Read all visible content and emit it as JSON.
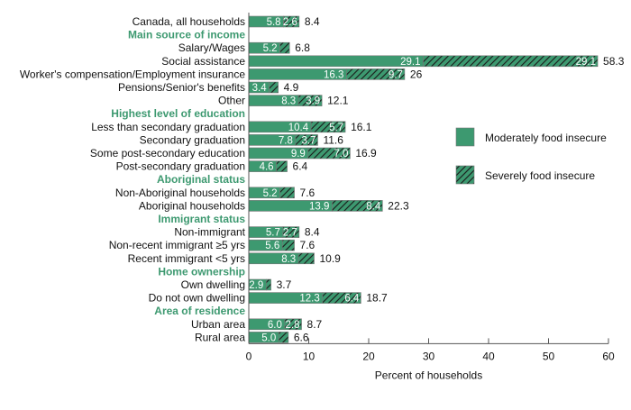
{
  "chart_data": {
    "type": "bar",
    "orientation": "horizontal",
    "stacked": true,
    "xlabel": "Percent of households",
    "xlim": [
      0,
      60
    ],
    "xticks": [
      0,
      10,
      20,
      30,
      40,
      50,
      60
    ],
    "grid": false,
    "legend_position": "right",
    "colors": {
      "moderate": "#3d9970",
      "severe_hatch": "#1a1a1a",
      "header": "#3d9970"
    },
    "series": [
      {
        "name": "Moderately food insecure",
        "pattern": "solid"
      },
      {
        "name": "Severely food insecure",
        "pattern": "hatched"
      }
    ],
    "rows": [
      {
        "label": "Canada, all households",
        "moderate": 5.8,
        "severe": 2.6,
        "total": "8.4"
      },
      {
        "header": "Main source of income"
      },
      {
        "label": "Salary/Wages",
        "moderate": 5.2,
        "severe": 1.6,
        "total": "6.8"
      },
      {
        "label": "Social assistance",
        "moderate": 29.1,
        "severe": 29.1,
        "total": "58.3"
      },
      {
        "label": "Worker's compensation/Employment insurance",
        "moderate": 16.3,
        "severe": 9.7,
        "total": "26"
      },
      {
        "label": "Pensions/Senior's benefits",
        "moderate": 3.4,
        "severe": 1.5,
        "total": "4.9"
      },
      {
        "label": "Other",
        "moderate": 8.3,
        "severe": 3.9,
        "total": "12.1"
      },
      {
        "header": "Highest level of education"
      },
      {
        "label": "Less than secondary graduation",
        "moderate": 10.4,
        "severe": 5.7,
        "total": "16.1"
      },
      {
        "label": "Secondary graduation",
        "moderate": 7.8,
        "severe": 3.7,
        "total": "11.6"
      },
      {
        "label": "Some post-secondary education",
        "moderate": 9.9,
        "severe": 7.0,
        "total": "16.9"
      },
      {
        "label": "Post-secondary graduation",
        "moderate": 4.6,
        "severe": 1.8,
        "total": "6.4"
      },
      {
        "header": "Aboriginal status"
      },
      {
        "label": "Non-Aboriginal households",
        "moderate": 5.2,
        "severe": 2.4,
        "total": "7.6"
      },
      {
        "label": "Aboriginal households",
        "moderate": 13.9,
        "severe": 8.4,
        "total": "22.3"
      },
      {
        "header": "Immigrant status"
      },
      {
        "label": "Non-immigrant",
        "moderate": 5.7,
        "severe": 2.7,
        "total": "8.4"
      },
      {
        "label": "Non-recent immigrant ≥5 yrs",
        "moderate": 5.6,
        "severe": 2.0,
        "total": "7.6"
      },
      {
        "label": "Recent immigrant <5 yrs",
        "moderate": 8.3,
        "severe": 2.6,
        "total": "10.9"
      },
      {
        "header": "Home ownership"
      },
      {
        "label": "Own dwelling",
        "moderate": 2.9,
        "severe": 0.8,
        "total": "3.7"
      },
      {
        "label": "Do not own dwelling",
        "moderate": 12.3,
        "severe": 6.4,
        "total": "18.7"
      },
      {
        "header": "Area of residence"
      },
      {
        "label": "Urban area",
        "moderate": 6.0,
        "severe": 2.8,
        "total": "8.7"
      },
      {
        "label": "Rural area",
        "moderate": 5.0,
        "severe": 1.6,
        "total": "6.6"
      }
    ],
    "severe_labels_shown_for": [
      "Canada, all households",
      "Social assistance",
      "Worker's compensation/Employment insurance",
      "Other",
      "Less than secondary graduation",
      "Secondary graduation",
      "Some post-secondary education",
      "Aboriginal households",
      "Non-immigrant",
      "Do not own dwelling",
      "Urban area"
    ]
  }
}
